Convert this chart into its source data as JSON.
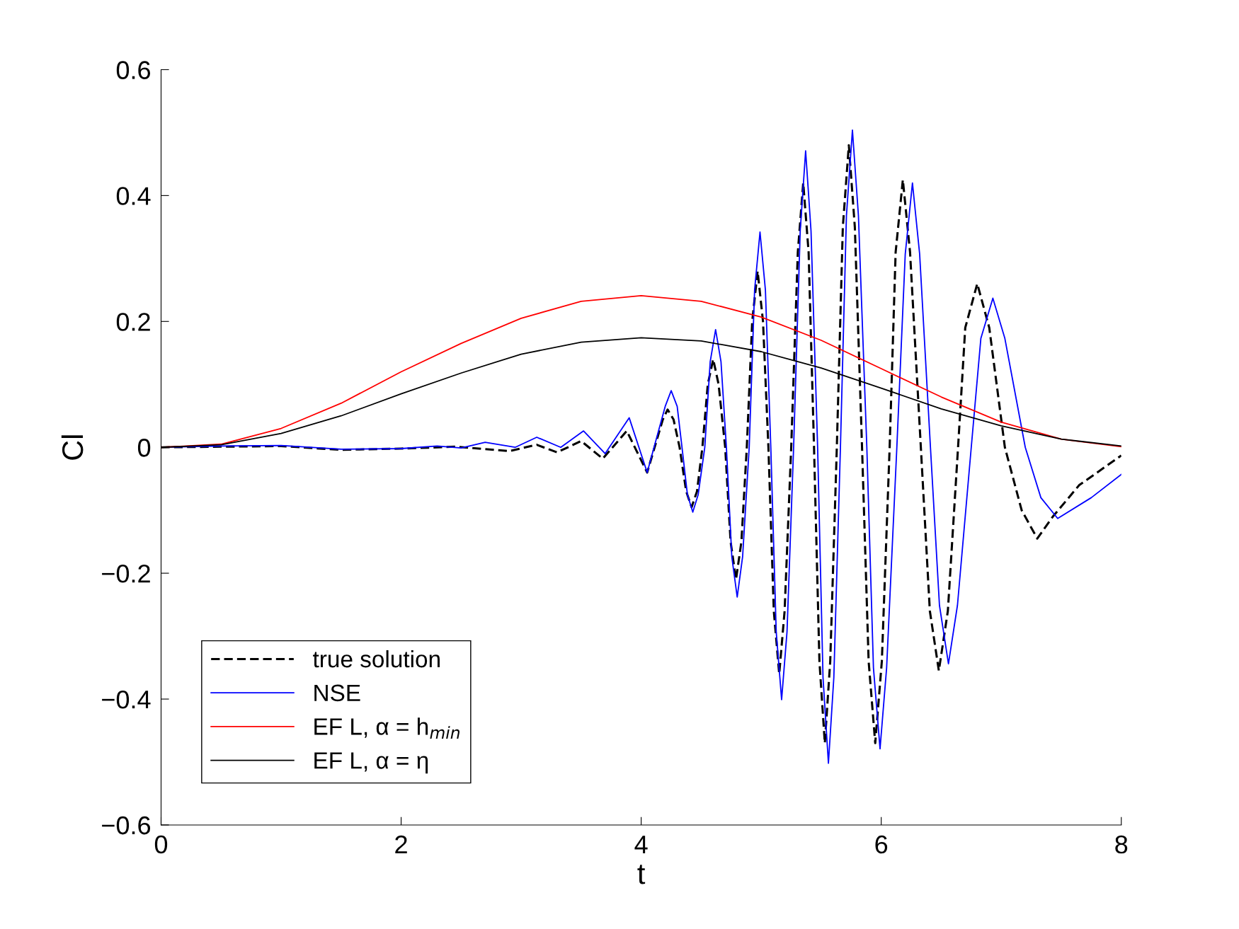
{
  "chart_data": {
    "type": "line",
    "xlabel": "t",
    "ylabel": "Cl",
    "xlim": [
      0,
      8
    ],
    "xticks": [
      0,
      2,
      4,
      6,
      8
    ],
    "ylim": [
      -0.6,
      0.6
    ],
    "yticks": [
      {
        "value": -0.6,
        "label": "−0.6"
      },
      {
        "value": -0.4,
        "label": "−0.4"
      },
      {
        "value": -0.2,
        "label": "−0.2"
      },
      0,
      0.2,
      0.4,
      0.6
    ],
    "grid": false,
    "legend": "bottom left",
    "series": [
      {
        "name": "true solution",
        "color": "#000000",
        "line_style": "dashed",
        "x": [
          0,
          0.5,
          1.0,
          1.5,
          2.0,
          2.45,
          2.9,
          3.13,
          3.3,
          3.5,
          3.68,
          3.88,
          4.05,
          4.18,
          4.22,
          4.27,
          4.32,
          4.375,
          4.42,
          4.465,
          4.51,
          4.555,
          4.6,
          4.645,
          4.7,
          4.745,
          4.79,
          4.835,
          4.88,
          4.925,
          4.97,
          5.015,
          5.06,
          5.105,
          5.15,
          5.195,
          5.25,
          5.305,
          5.35,
          5.395,
          5.44,
          5.485,
          5.53,
          5.575,
          5.63,
          5.68,
          5.73,
          5.78,
          5.84,
          5.895,
          5.95,
          6.005,
          6.07,
          6.12,
          6.18,
          6.24,
          6.33,
          6.405,
          6.48,
          6.555,
          6.64,
          6.7,
          6.8,
          6.9,
          7.03,
          7.17,
          7.3,
          7.43,
          7.65,
          8.0
        ],
        "values": [
          0,
          0.001,
          0.002,
          -0.004,
          -0.002,
          0.001,
          -0.006,
          0.004,
          -0.008,
          0.01,
          -0.018,
          0.026,
          -0.04,
          0.044,
          0.06,
          0.044,
          0.0,
          -0.07,
          -0.095,
          -0.07,
          0.0,
          0.1,
          0.14,
          0.1,
          0.0,
          -0.15,
          -0.21,
          -0.15,
          0.0,
          0.2,
          0.28,
          0.2,
          0.0,
          -0.26,
          -0.36,
          -0.26,
          0.0,
          0.31,
          0.42,
          0.31,
          0.0,
          -0.34,
          -0.47,
          -0.34,
          0.0,
          0.35,
          0.48,
          0.35,
          0.0,
          -0.34,
          -0.47,
          -0.34,
          0.0,
          0.31,
          0.425,
          0.31,
          0.0,
          -0.26,
          -0.355,
          -0.26,
          0.0,
          0.19,
          0.26,
          0.19,
          0.0,
          -0.1,
          -0.145,
          -0.11,
          -0.06,
          -0.013
        ]
      },
      {
        "name": "NSE",
        "color": "#0000ff",
        "line_style": "solid",
        "x": [
          0,
          0.5,
          1.0,
          1.5,
          2.0,
          2.3,
          2.5,
          2.7,
          2.95,
          3.13,
          3.33,
          3.52,
          3.7,
          3.9,
          4.05,
          4.2,
          4.25,
          4.3,
          4.34,
          4.385,
          4.43,
          4.475,
          4.53,
          4.575,
          4.62,
          4.665,
          4.71,
          4.755,
          4.8,
          4.845,
          4.9,
          4.945,
          4.99,
          5.035,
          5.08,
          5.125,
          5.17,
          5.215,
          5.27,
          5.325,
          5.37,
          5.415,
          5.47,
          5.515,
          5.56,
          5.605,
          5.66,
          5.71,
          5.76,
          5.81,
          5.88,
          5.935,
          5.99,
          6.045,
          6.13,
          6.2,
          6.26,
          6.32,
          6.41,
          6.485,
          6.56,
          6.635,
          6.75,
          6.83,
          6.93,
          7.03,
          7.2,
          7.33,
          7.47,
          7.75,
          8.0
        ],
        "values": [
          0,
          0.002,
          0.003,
          -0.003,
          -0.002,
          0.002,
          -0.001,
          0.008,
          0.0,
          0.016,
          0.0,
          0.026,
          -0.01,
          0.047,
          -0.04,
          0.065,
          0.09,
          0.065,
          0.0,
          -0.075,
          -0.103,
          -0.075,
          0.0,
          0.136,
          0.187,
          0.136,
          0.0,
          -0.174,
          -0.238,
          -0.174,
          0.0,
          0.25,
          0.342,
          0.25,
          0.0,
          -0.293,
          -0.401,
          -0.293,
          0.0,
          0.344,
          0.471,
          0.344,
          0.0,
          -0.366,
          -0.502,
          -0.366,
          0.0,
          0.368,
          0.504,
          0.368,
          0.0,
          -0.35,
          -0.479,
          -0.35,
          0.0,
          0.307,
          0.42,
          0.307,
          0.0,
          -0.251,
          -0.344,
          -0.251,
          0.0,
          0.173,
          0.237,
          0.173,
          0.0,
          -0.08,
          -0.113,
          -0.08,
          -0.043
        ]
      },
      {
        "name": "EF L, α = h$_{min}$",
        "color": "#ff0000",
        "line_style": "solid",
        "x": [
          0,
          0.5,
          1.0,
          1.5,
          2.0,
          2.5,
          3.0,
          3.5,
          4.0,
          4.5,
          5.0,
          5.5,
          6.0,
          6.5,
          7.0,
          7.5,
          8.0
        ],
        "values": [
          0,
          0.005,
          0.03,
          0.07,
          0.12,
          0.165,
          0.205,
          0.232,
          0.241,
          0.232,
          0.207,
          0.17,
          0.125,
          0.08,
          0.04,
          0.013,
          0.001
        ]
      },
      {
        "name": "EF L, α = η",
        "color": "#000000",
        "line_style": "solid",
        "x": [
          0,
          0.5,
          1.0,
          1.5,
          2.0,
          2.5,
          3.0,
          3.5,
          4.0,
          4.5,
          5.0,
          5.5,
          6.0,
          6.5,
          7.0,
          7.5,
          8.0
        ],
        "values": [
          0,
          0.004,
          0.022,
          0.05,
          0.085,
          0.118,
          0.148,
          0.167,
          0.174,
          0.169,
          0.152,
          0.126,
          0.094,
          0.061,
          0.034,
          0.013,
          0.002
        ]
      }
    ]
  }
}
